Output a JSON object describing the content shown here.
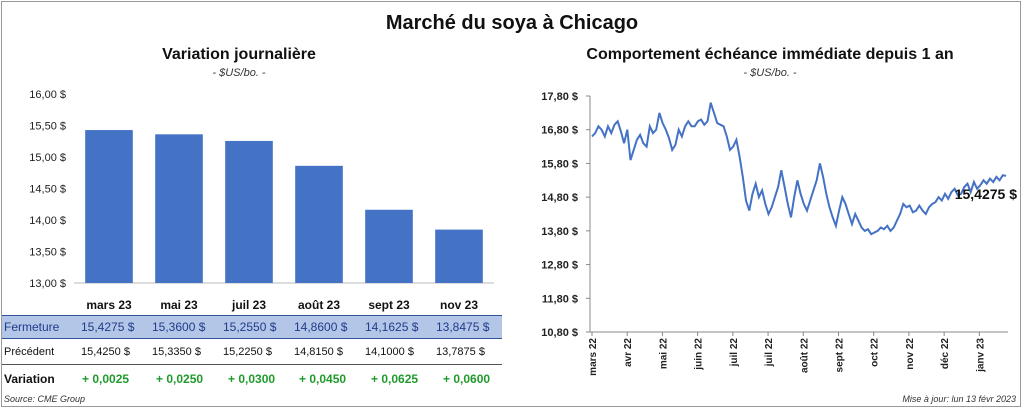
{
  "title": "Marché du soya à Chicago",
  "source": "Source: CME Group",
  "updated": "Mise à jour: lun 13 févr 2023",
  "chart_data": [
    {
      "type": "bar",
      "title": "Variation  journalière",
      "subtitle": "- $US/bo. -",
      "categories": [
        "mars 23",
        "mai 23",
        "juil 23",
        "août 23",
        "sept 23",
        "nov 23"
      ],
      "values": [
        15.4275,
        15.36,
        15.255,
        14.86,
        14.1625,
        13.8475
      ],
      "ylim": [
        13.0,
        16.0
      ],
      "yticks": [
        "13,00 $",
        "13,50 $",
        "14,00 $",
        "14,50 $",
        "15,00 $",
        "15,50 $",
        "16,00 $"
      ],
      "color": "#4472c4"
    },
    {
      "type": "line",
      "title": "Comportement  échéance immédiate depuis 1 an",
      "subtitle": "- $US/bo. -",
      "ylim": [
        10.8,
        17.8
      ],
      "yticks": [
        "10,80 $",
        "11,80 $",
        "12,80 $",
        "13,80 $",
        "14,80 $",
        "15,80 $",
        "16,80 $",
        "17,80 $"
      ],
      "xticks": [
        "mars 22",
        "avr 22",
        "mai 22",
        "juin 22",
        "juil 22",
        "juil 22",
        "août 22",
        "sept 22",
        "oct 22",
        "nov 22",
        "déc 22",
        "janv 23"
      ],
      "last_value_label": "15,4275 $",
      "color": "#4472c4",
      "values": [
        16.6,
        16.7,
        16.9,
        16.8,
        16.6,
        16.9,
        16.7,
        16.95,
        17.05,
        16.75,
        16.4,
        16.8,
        15.9,
        16.2,
        16.5,
        16.65,
        16.4,
        16.3,
        16.9,
        16.7,
        16.8,
        17.3,
        17.0,
        16.8,
        16.55,
        16.2,
        16.35,
        16.8,
        16.6,
        16.9,
        17.05,
        16.9,
        16.9,
        17.05,
        17.1,
        16.95,
        17.05,
        17.6,
        17.3,
        17.0,
        16.95,
        16.9,
        16.6,
        16.2,
        16.3,
        16.5,
        16.0,
        15.4,
        14.7,
        14.4,
        14.9,
        15.2,
        14.8,
        15.0,
        14.6,
        14.3,
        14.5,
        14.8,
        15.1,
        15.6,
        15.1,
        14.6,
        14.2,
        14.8,
        15.3,
        14.9,
        14.6,
        14.4,
        14.7,
        15.0,
        15.3,
        15.8,
        15.4,
        14.9,
        14.5,
        14.2,
        13.95,
        14.4,
        14.8,
        14.6,
        14.3,
        14.0,
        14.3,
        14.1,
        13.9,
        13.8,
        13.85,
        13.7,
        13.75,
        13.8,
        13.9,
        13.85,
        13.95,
        13.8,
        13.9,
        14.1,
        14.3,
        14.6,
        14.5,
        14.55,
        14.35,
        14.4,
        14.55,
        14.4,
        14.3,
        14.5,
        14.6,
        14.65,
        14.8,
        14.7,
        14.9,
        14.75,
        14.95,
        15.05,
        14.85,
        14.9,
        15.1,
        15.2,
        14.95,
        15.25,
        15.05,
        15.15,
        15.3,
        15.2,
        15.35,
        15.25,
        15.4,
        15.3,
        15.45,
        15.43
      ]
    }
  ],
  "table": {
    "rows": [
      {
        "label": "Fermeture",
        "cells": [
          "15,4275  $",
          "15,3600  $",
          "15,2550  $",
          "14,8600  $",
          "14,1625  $",
          "13,8475  $"
        ]
      },
      {
        "label": "Précédent",
        "cells": [
          "15,4250  $",
          "15,3350  $",
          "15,2250  $",
          "14,8150  $",
          "14,1000  $",
          "13,7875  $"
        ]
      },
      {
        "label": "Variation",
        "cells": [
          "+ 0,0025",
          "+ 0,0250",
          "+ 0,0300",
          "+ 0,0450",
          "+ 0,0625",
          "+ 0,0600"
        ]
      }
    ]
  }
}
